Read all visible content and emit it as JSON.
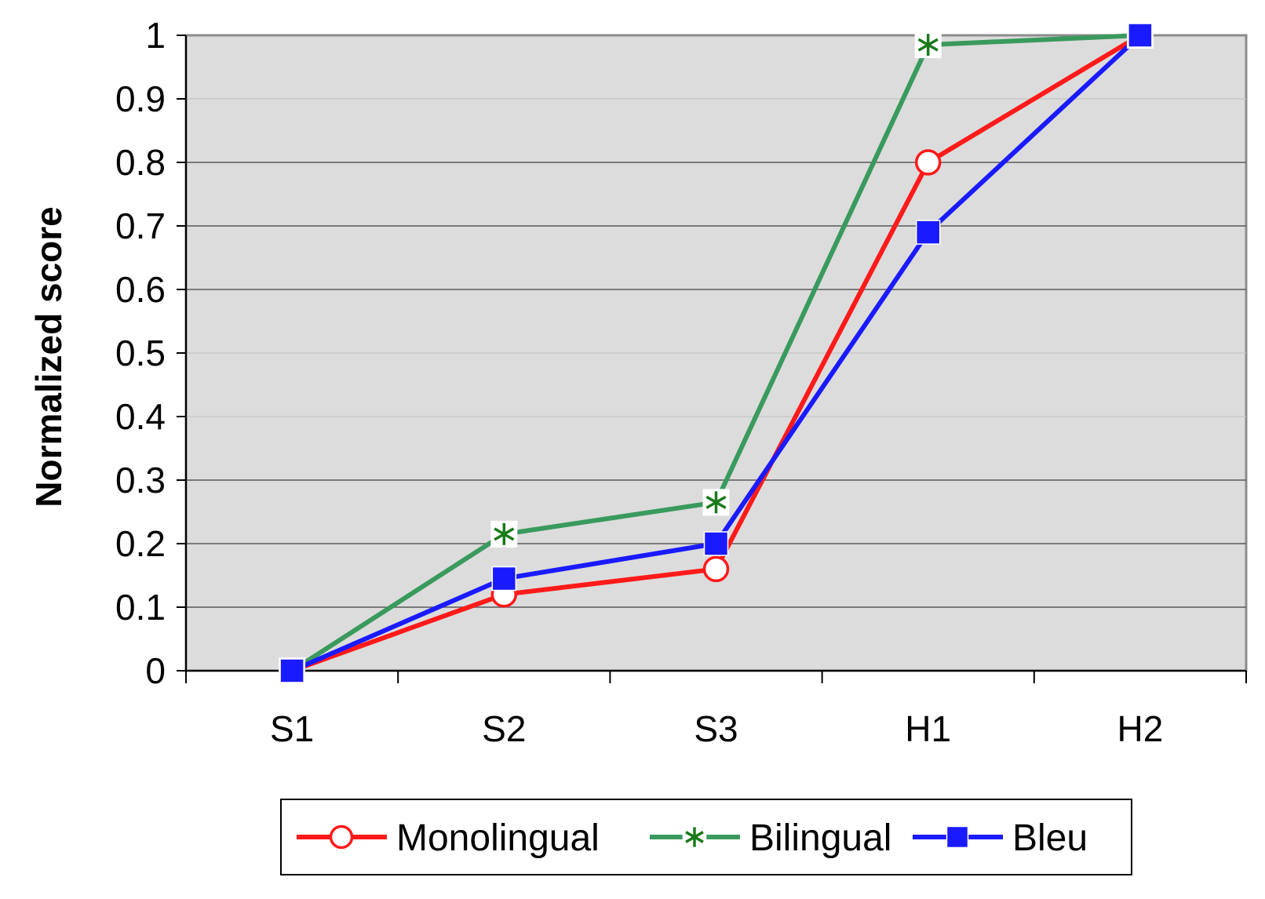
{
  "chart_data": {
    "type": "line",
    "title": "",
    "xlabel": "",
    "ylabel": "Normalized score",
    "categories": [
      "S1",
      "S2",
      "S3",
      "H1",
      "H2"
    ],
    "ylim": [
      0,
      1
    ],
    "yticks": [
      "0",
      "0.1",
      "0.2",
      "0.3",
      "0.4",
      "0.5",
      "0.6",
      "0.7",
      "0.8",
      "0.9",
      "1"
    ],
    "grid": "horizontal at 0.1, 0.2, 0.3, 0.6, 0.7, 0.8",
    "plot_background": "#dcdcdc",
    "legend_position": "bottom",
    "series": [
      {
        "name": "Monolingual",
        "color": "#ff1a1a",
        "marker": "circle-open",
        "values": [
          0.0,
          0.12,
          0.16,
          0.8,
          1.0
        ]
      },
      {
        "name": "Bilingual",
        "color": "#3a9a5e",
        "marker": "asterisk",
        "marker_color": "#1a7a1a",
        "values": [
          0.0,
          0.215,
          0.265,
          0.985,
          1.0
        ]
      },
      {
        "name": "Bleu",
        "color": "#1a1aff",
        "marker": "square-filled",
        "values": [
          0.0,
          0.145,
          0.2,
          0.69,
          1.0
        ]
      }
    ]
  }
}
